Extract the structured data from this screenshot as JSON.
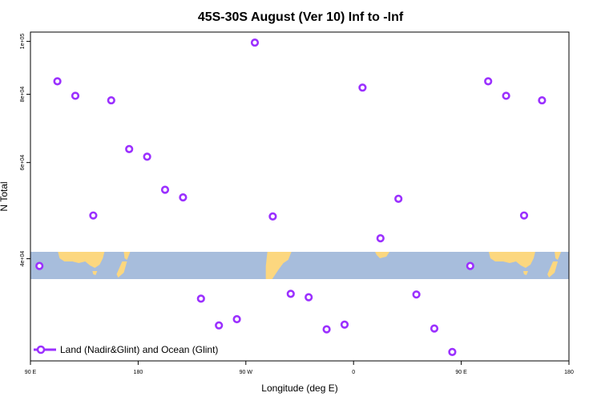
{
  "chart_data": {
    "type": "scatter",
    "title": "45S-30S August (Ver 10)   Inf to -Inf",
    "xlabel": "Longitude (deg E)",
    "ylabel": "N Total",
    "x_tick_labels": [
      "90 E",
      "180",
      "90 W",
      "0",
      "90 E",
      "180"
    ],
    "x_tick_values": [
      90,
      180,
      270,
      360,
      450,
      540
    ],
    "xlim": [
      90,
      540
    ],
    "y_scale": "log",
    "y_tick_labels": [
      "4e+04",
      "6e+04",
      "8e+04",
      "1e+05"
    ],
    "y_tick_values": [
      40000,
      60000,
      80000,
      100000
    ],
    "ylim": [
      26000,
      104000
    ],
    "grid": false,
    "legend_position": "bottom-left",
    "series": [
      {
        "name": "Land (Nadir&Glint) and Ocean (Glint)",
        "color": "#9b30ff",
        "marker": "open-circle",
        "points": [
          {
            "x": 97.5,
            "y": 38800
          },
          {
            "x": 112.5,
            "y": 84500
          },
          {
            "x": 127.5,
            "y": 79500
          },
          {
            "x": 142.5,
            "y": 48000
          },
          {
            "x": 157.5,
            "y": 78000
          },
          {
            "x": 172.5,
            "y": 63500
          },
          {
            "x": 187.5,
            "y": 61500
          },
          {
            "x": 202.5,
            "y": 53500
          },
          {
            "x": 217.5,
            "y": 51800
          },
          {
            "x": 232.5,
            "y": 33800
          },
          {
            "x": 247.5,
            "y": 30200
          },
          {
            "x": 262.5,
            "y": 31000
          },
          {
            "x": 277.5,
            "y": 99500
          },
          {
            "x": 292.5,
            "y": 47800
          },
          {
            "x": 307.5,
            "y": 34500
          },
          {
            "x": 322.5,
            "y": 34000
          },
          {
            "x": 337.5,
            "y": 29700
          },
          {
            "x": 352.5,
            "y": 30300
          },
          {
            "x": 367.5,
            "y": 82300
          },
          {
            "x": 382.5,
            "y": 43600
          },
          {
            "x": 397.5,
            "y": 51500
          },
          {
            "x": 412.5,
            "y": 34400
          },
          {
            "x": 427.5,
            "y": 29800
          },
          {
            "x": 442.5,
            "y": 27000
          },
          {
            "x": 457.5,
            "y": 38800
          },
          {
            "x": 472.5,
            "y": 84500
          },
          {
            "x": 487.5,
            "y": 79500
          },
          {
            "x": 502.5,
            "y": 48000
          },
          {
            "x": 517.5,
            "y": 78000
          }
        ]
      }
    ],
    "map_strip": {
      "ocean_color": "#a7bddc",
      "land_color": "#fcd77f"
    }
  }
}
